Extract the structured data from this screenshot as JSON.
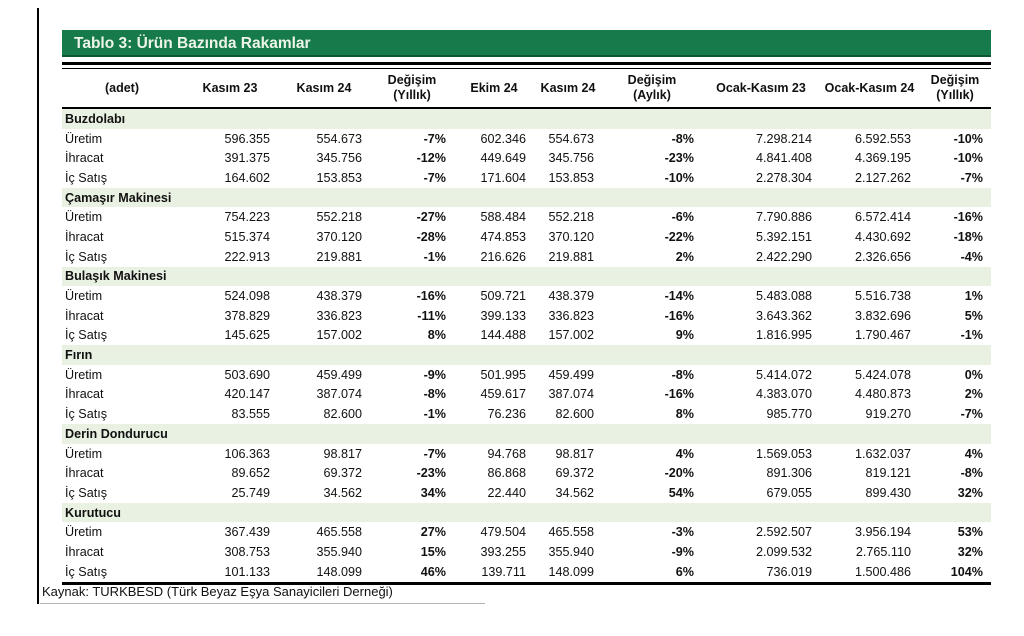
{
  "title": "Tablo 3: Ürün Bazında Rakamlar",
  "footer": "Kaynak: TURKBESD (Türk Beyaz Eşya Sanayicileri Derneği)",
  "colors": {
    "header_green": "#177A4B",
    "section_row_bg": "#E9F1E2"
  },
  "columns": [
    {
      "label": "(adet)",
      "sub": ""
    },
    {
      "label": "Kasım 23",
      "sub": ""
    },
    {
      "label": "Kasım 24",
      "sub": ""
    },
    {
      "label": "Değişim",
      "sub": "(Yıllık)"
    },
    {
      "label": "Ekim 24",
      "sub": ""
    },
    {
      "label": "Kasım 24",
      "sub": ""
    },
    {
      "label": "Değişim",
      "sub": "(Aylık)"
    },
    {
      "label": "Ocak-Kasım 23",
      "sub": ""
    },
    {
      "label": "Ocak-Kasım 24",
      "sub": ""
    },
    {
      "label": "Değişim",
      "sub": "(Yıllık)"
    }
  ],
  "sections": [
    {
      "name": "Buzdolabı",
      "rows": [
        {
          "label": "Üretim",
          "values": [
            "596.355",
            "554.673",
            "-7%",
            "602.346",
            "554.673",
            "-8%",
            "7.298.214",
            "6.592.553",
            "-10%"
          ]
        },
        {
          "label": "İhracat",
          "values": [
            "391.375",
            "345.756",
            "-12%",
            "449.649",
            "345.756",
            "-23%",
            "4.841.408",
            "4.369.195",
            "-10%"
          ]
        },
        {
          "label": "İç Satış",
          "values": [
            "164.602",
            "153.853",
            "-7%",
            "171.604",
            "153.853",
            "-10%",
            "2.278.304",
            "2.127.262",
            "-7%"
          ]
        }
      ]
    },
    {
      "name": "Çamaşır Makinesi",
      "rows": [
        {
          "label": "Üretim",
          "values": [
            "754.223",
            "552.218",
            "-27%",
            "588.484",
            "552.218",
            "-6%",
            "7.790.886",
            "6.572.414",
            "-16%"
          ]
        },
        {
          "label": "İhracat",
          "values": [
            "515.374",
            "370.120",
            "-28%",
            "474.853",
            "370.120",
            "-22%",
            "5.392.151",
            "4.430.692",
            "-18%"
          ]
        },
        {
          "label": "İç Satış",
          "values": [
            "222.913",
            "219.881",
            "-1%",
            "216.626",
            "219.881",
            "2%",
            "2.422.290",
            "2.326.656",
            "-4%"
          ]
        }
      ]
    },
    {
      "name": "Bulaşık Makinesi",
      "rows": [
        {
          "label": "Üretim",
          "values": [
            "524.098",
            "438.379",
            "-16%",
            "509.721",
            "438.379",
            "-14%",
            "5.483.088",
            "5.516.738",
            "1%"
          ]
        },
        {
          "label": "İhracat",
          "values": [
            "378.829",
            "336.823",
            "-11%",
            "399.133",
            "336.823",
            "-16%",
            "3.643.362",
            "3.832.696",
            "5%"
          ]
        },
        {
          "label": "İç Satış",
          "values": [
            "145.625",
            "157.002",
            "8%",
            "144.488",
            "157.002",
            "9%",
            "1.816.995",
            "1.790.467",
            "-1%"
          ]
        }
      ]
    },
    {
      "name": "Fırın",
      "rows": [
        {
          "label": "Üretim",
          "values": [
            "503.690",
            "459.499",
            "-9%",
            "501.995",
            "459.499",
            "-8%",
            "5.414.072",
            "5.424.078",
            "0%"
          ]
        },
        {
          "label": "İhracat",
          "values": [
            "420.147",
            "387.074",
            "-8%",
            "459.617",
            "387.074",
            "-16%",
            "4.383.070",
            "4.480.873",
            "2%"
          ]
        },
        {
          "label": "İç Satış",
          "values": [
            "83.555",
            "82.600",
            "-1%",
            "76.236",
            "82.600",
            "8%",
            "985.770",
            "919.270",
            "-7%"
          ]
        }
      ]
    },
    {
      "name": "Derin Dondurucu",
      "rows": [
        {
          "label": "Üretim",
          "values": [
            "106.363",
            "98.817",
            "-7%",
            "94.768",
            "98.817",
            "4%",
            "1.569.053",
            "1.632.037",
            "4%"
          ]
        },
        {
          "label": "İhracat",
          "values": [
            "89.652",
            "69.372",
            "-23%",
            "86.868",
            "69.372",
            "-20%",
            "891.306",
            "819.121",
            "-8%"
          ]
        },
        {
          "label": "İç Satış",
          "values": [
            "25.749",
            "34.562",
            "34%",
            "22.440",
            "34.562",
            "54%",
            "679.055",
            "899.430",
            "32%"
          ]
        }
      ]
    },
    {
      "name": "Kurutucu",
      "rows": [
        {
          "label": "Üretim",
          "values": [
            "367.439",
            "465.558",
            "27%",
            "479.504",
            "465.558",
            "-3%",
            "2.592.507",
            "3.956.194",
            "53%"
          ]
        },
        {
          "label": "İhracat",
          "values": [
            "308.753",
            "355.940",
            "15%",
            "393.255",
            "355.940",
            "-9%",
            "2.099.532",
            "2.765.110",
            "32%"
          ]
        },
        {
          "label": "İç Satış",
          "values": [
            "101.133",
            "148.099",
            "46%",
            "139.711",
            "148.099",
            "6%",
            "736.019",
            "1.500.486",
            "104%"
          ]
        }
      ]
    }
  ]
}
